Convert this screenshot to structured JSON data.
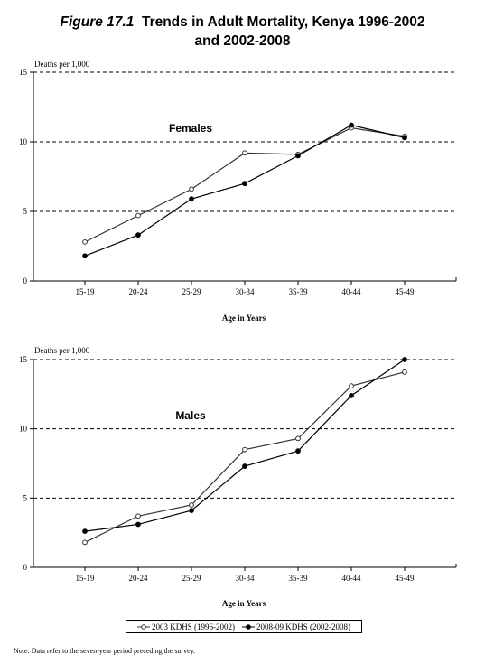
{
  "title": {
    "figure_label": "Figure 17.1",
    "text_line1": "Trends in Adult Mortality, Kenya 1996-2002",
    "text_line2": "and 2002-2008"
  },
  "legend": {
    "items": [
      {
        "label": "2003 KDHS (1996-2002)",
        "marker": "open-circle"
      },
      {
        "label": "2008-09 KDHS (2002-2008)",
        "marker": "filled-circle"
      }
    ]
  },
  "note": "Note: Data refer to the seven-year period preceding the survey.",
  "chart_data": [
    {
      "type": "line",
      "panel_label": "Females",
      "ylabel": "Deaths per 1,000",
      "xlabel": "Age in Years",
      "ylim": [
        0,
        15
      ],
      "yticks": [
        0,
        5,
        10,
        15
      ],
      "grid": "dashed-horizontal",
      "categories": [
        "15-19",
        "20-24",
        "25-29",
        "30-34",
        "35-39",
        "40-44",
        "45-49"
      ],
      "series": [
        {
          "name": "2003 KDHS (1996-2002)",
          "marker": "open-circle",
          "values": [
            2.8,
            4.7,
            6.6,
            9.2,
            9.1,
            11.0,
            10.4
          ]
        },
        {
          "name": "2008-09 KDHS (2002-2008)",
          "marker": "filled-circle",
          "values": [
            1.8,
            3.3,
            5.9,
            7.0,
            9.0,
            11.2,
            10.3
          ]
        }
      ]
    },
    {
      "type": "line",
      "panel_label": "Males",
      "ylabel": "Deaths per 1,000",
      "xlabel": "Age in Years",
      "ylim": [
        0,
        15
      ],
      "yticks": [
        0,
        5,
        10,
        15
      ],
      "grid": "dashed-horizontal",
      "categories": [
        "15-19",
        "20-24",
        "25-29",
        "30-34",
        "35-39",
        "40-44",
        "45-49"
      ],
      "series": [
        {
          "name": "2003 KDHS (1996-2002)",
          "marker": "open-circle",
          "values": [
            1.8,
            3.7,
            4.5,
            8.5,
            9.3,
            13.1,
            14.1
          ]
        },
        {
          "name": "2008-09 KDHS (2002-2008)",
          "marker": "filled-circle",
          "values": [
            2.6,
            3.1,
            4.1,
            7.3,
            8.4,
            12.4,
            15.0
          ]
        }
      ]
    }
  ]
}
